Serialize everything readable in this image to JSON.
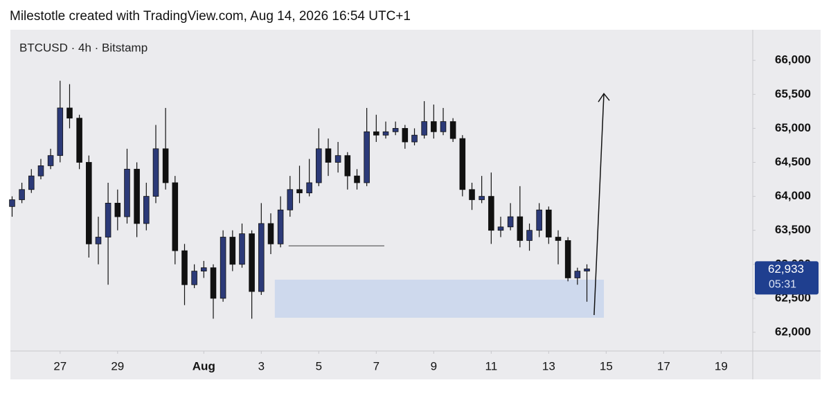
{
  "header": "Milestotle created with TradingView.com, Aug 14, 2026 16:54 UTC+1",
  "chart_data": {
    "type": "candlestick",
    "title": "BTCUSD · 4h · Bitstamp",
    "x": [
      25.33,
      25.67,
      26.0,
      26.33,
      26.67,
      27.0,
      27.33,
      27.67,
      28.0,
      28.33,
      28.67,
      29.0,
      29.33,
      29.67,
      30.0,
      30.33,
      30.67,
      31.0,
      31.33,
      31.67,
      32.0,
      32.33,
      32.67,
      33.0,
      33.33,
      33.67,
      34.0,
      34.33,
      34.67,
      35.0,
      35.33,
      35.67,
      36.0,
      36.33,
      36.67,
      37.0,
      37.33,
      37.67,
      38.0,
      38.33,
      38.67,
      39.0,
      39.33,
      39.67,
      40.0,
      40.33,
      40.67,
      41.0,
      41.33,
      41.67,
      42.0,
      42.33,
      42.67,
      43.0,
      43.33,
      43.67,
      44.0,
      44.33,
      44.67,
      45.0,
      45.33
    ],
    "open": [
      63850,
      63950,
      64100,
      64300,
      64450,
      64600,
      65300,
      65150,
      64500,
      63300,
      63400,
      63900,
      63700,
      64400,
      63600,
      64000,
      64700,
      64200,
      63200,
      62700,
      62900,
      62950,
      62500,
      63400,
      63000,
      63450,
      62600,
      63600,
      63300,
      63800,
      64100,
      64050,
      64200,
      64700,
      64500,
      64600,
      64300,
      64200,
      64950,
      64900,
      64950,
      65000,
      64800,
      64900,
      65100,
      64950,
      65100,
      64850,
      64100,
      63950,
      64000,
      63500,
      63550,
      63700,
      63350,
      63500,
      63800,
      63400,
      63350,
      62800,
      62900
    ],
    "high": [
      64000,
      64200,
      64400,
      64550,
      64700,
      65700,
      65650,
      65200,
      64600,
      63700,
      64200,
      64100,
      64700,
      64500,
      64200,
      65050,
      65300,
      64300,
      63300,
      63000,
      63050,
      63000,
      63500,
      63500,
      63600,
      63500,
      63900,
      63750,
      64000,
      64300,
      64450,
      64550,
      65000,
      64850,
      64800,
      64650,
      64400,
      65300,
      65200,
      65100,
      65100,
      65050,
      65000,
      65400,
      65350,
      65300,
      65150,
      64900,
      64200,
      64300,
      64350,
      63700,
      63900,
      64150,
      63600,
      63900,
      63850,
      63500,
      63400,
      62950,
      63000
    ],
    "low": [
      63700,
      63900,
      64050,
      64250,
      64400,
      64500,
      65000,
      64400,
      63100,
      63000,
      62700,
      63500,
      63600,
      63400,
      63500,
      63900,
      64100,
      63000,
      62400,
      62650,
      62800,
      62200,
      62450,
      62900,
      62950,
      62200,
      62550,
      63150,
      63250,
      63700,
      63900,
      64000,
      64150,
      64300,
      64350,
      64100,
      64100,
      64150,
      64800,
      64850,
      64900,
      64700,
      64750,
      64850,
      64850,
      64900,
      64800,
      64000,
      63800,
      63900,
      63300,
      63400,
      63500,
      63250,
      63200,
      63400,
      63300,
      63000,
      62750,
      62700,
      62450
    ],
    "close": [
      63950,
      64100,
      64300,
      64450,
      64600,
      65300,
      65150,
      64500,
      63300,
      63400,
      63900,
      63700,
      64400,
      63600,
      64000,
      64700,
      64200,
      63200,
      62700,
      62900,
      62950,
      62500,
      63400,
      63000,
      63450,
      62600,
      63600,
      63300,
      63800,
      64100,
      64050,
      64200,
      64700,
      64500,
      64600,
      64300,
      64200,
      64950,
      64900,
      64950,
      65000,
      64800,
      64900,
      65100,
      64950,
      65100,
      64850,
      64100,
      63950,
      64000,
      63500,
      63550,
      63700,
      63350,
      63500,
      63800,
      63400,
      63350,
      62800,
      62900,
      62933
    ],
    "up_color": "#2c3a78",
    "down_color": "#111111",
    "xlim": [
      25.27,
      51.1
    ],
    "ylim": [
      61725,
      66450
    ],
    "xticks": [
      27,
      29,
      {
        "value": 32,
        "label": "Aug"
      },
      {
        "value": 34,
        "label": "3"
      },
      {
        "value": 36,
        "label": "5"
      },
      {
        "value": 38,
        "label": "7"
      },
      {
        "value": 40,
        "label": "9"
      },
      {
        "value": 42,
        "label": "11"
      },
      {
        "value": 44,
        "label": "13"
      },
      {
        "value": 46,
        "label": "15"
      },
      {
        "value": 48,
        "label": "17"
      },
      {
        "value": 50,
        "label": "19"
      }
    ],
    "yticks": [
      {
        "value": 62000,
        "label": "62,000"
      },
      {
        "value": 62500,
        "label": "62,500"
      },
      {
        "value": 63000,
        "label": "63,000"
      },
      {
        "value": 63500,
        "label": "63,500"
      },
      {
        "value": 64000,
        "label": "64,000"
      },
      {
        "value": 64500,
        "label": "64,500"
      },
      {
        "value": 65000,
        "label": "65,000"
      },
      {
        "value": 65500,
        "label": "65,500"
      },
      {
        "value": 66000,
        "label": "66,000"
      }
    ],
    "last_price": {
      "value": 62933,
      "label": "62,933",
      "countdown": "05:31",
      "color": "#1f3f8f"
    },
    "zone": {
      "x": [
        34.47,
        45.92
      ],
      "y": [
        62214,
        62774
      ],
      "color": "#c9d6ec"
    },
    "level_line": {
      "x": [
        34.95,
        38.28
      ],
      "y": 63272
    },
    "arrow": {
      "x": [
        45.58,
        45.92
      ],
      "y": [
        62254,
        65511
      ]
    }
  }
}
